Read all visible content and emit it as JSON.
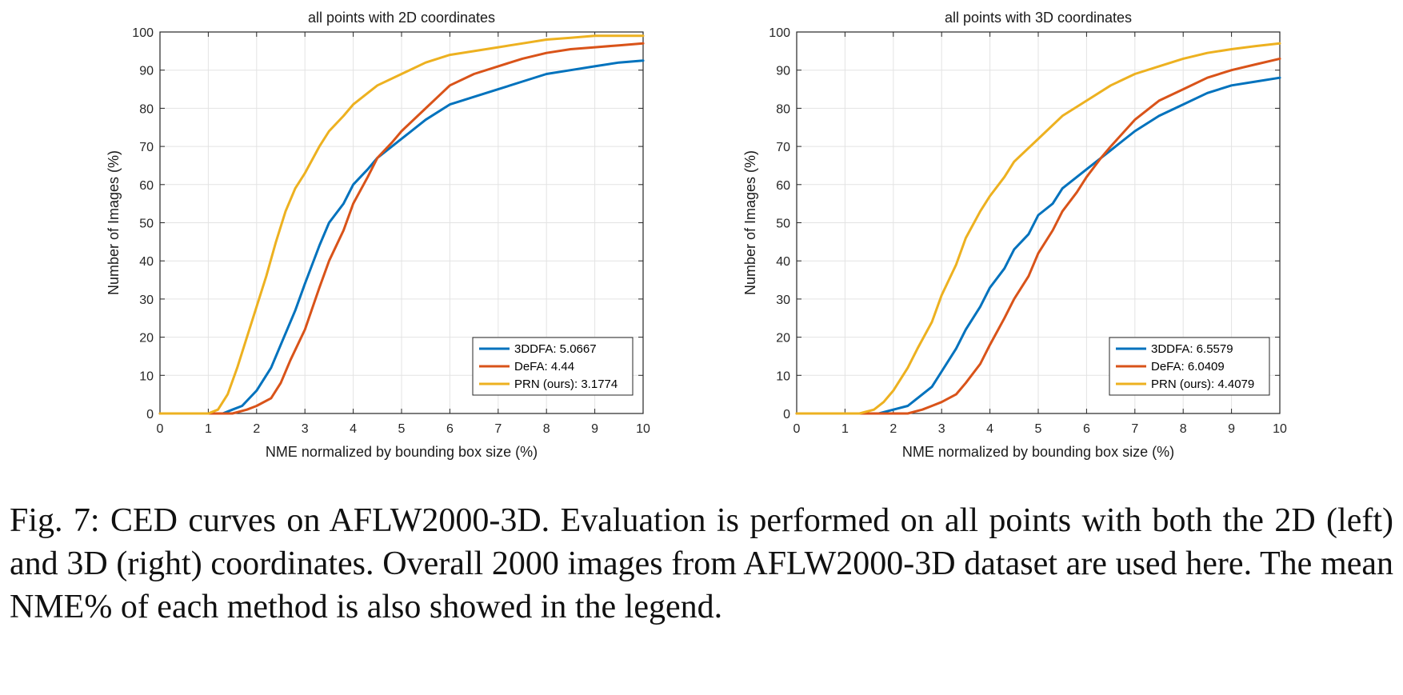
{
  "caption": "Fig. 7: CED curves on AFLW2000-3D. Evaluation is performed on all points with both the 2D (left) and 3D (right) coordinates. Overall 2000 images from AFLW2000-3D dataset are used here. The mean NME% of each method is also showed in the legend.",
  "chart_data": [
    {
      "type": "line",
      "title": "all points with 2D coordinates",
      "xlabel": "NME normalized by bounding box size (%)",
      "ylabel": "Number of Images (%)",
      "xlim": [
        0,
        10
      ],
      "ylim": [
        0,
        100
      ],
      "xticks": [
        0,
        1,
        2,
        3,
        4,
        5,
        6,
        7,
        8,
        9,
        10
      ],
      "yticks": [
        0,
        10,
        20,
        30,
        40,
        50,
        60,
        70,
        80,
        90,
        100
      ],
      "grid": true,
      "legend_position": "bottom-right",
      "series": [
        {
          "name": "3DDFA: 5.0667",
          "color": "#0072BD",
          "x": [
            0,
            1.3,
            1.5,
            1.7,
            2,
            2.3,
            2.5,
            2.8,
            3,
            3.3,
            3.5,
            3.8,
            4,
            4.3,
            4.5,
            5,
            5.5,
            6,
            6.5,
            7,
            7.5,
            8,
            8.5,
            9,
            9.5,
            10
          ],
          "y": [
            0,
            0,
            1,
            2,
            6,
            12,
            18,
            27,
            34,
            44,
            50,
            55,
            60,
            64,
            67,
            72,
            77,
            81,
            83,
            85,
            87,
            89,
            90,
            91,
            92,
            92.5
          ]
        },
        {
          "name": "DeFA: 4.44",
          "color": "#D95319",
          "x": [
            0,
            1.5,
            1.8,
            2,
            2.3,
            2.5,
            2.7,
            3,
            3.3,
            3.5,
            3.8,
            4,
            4.3,
            4.5,
            4.8,
            5,
            5.5,
            6,
            6.5,
            7,
            7.5,
            8,
            8.5,
            9,
            9.5,
            10
          ],
          "y": [
            0,
            0,
            1,
            2,
            4,
            8,
            14,
            22,
            33,
            40,
            48,
            55,
            62,
            67,
            71,
            74,
            80,
            86,
            89,
            91,
            93,
            94.5,
            95.5,
            96,
            96.5,
            97
          ]
        },
        {
          "name": "PRN (ours): 3.1774",
          "color": "#EDB120",
          "x": [
            0,
            1,
            1.2,
            1.4,
            1.6,
            1.8,
            2,
            2.2,
            2.4,
            2.6,
            2.8,
            3,
            3.3,
            3.5,
            3.8,
            4,
            4.3,
            4.5,
            5,
            5.5,
            6,
            6.5,
            7,
            7.5,
            8,
            8.5,
            9,
            9.5,
            10
          ],
          "y": [
            0,
            0,
            1,
            5,
            12,
            20,
            28,
            36,
            45,
            53,
            59,
            63,
            70,
            74,
            78,
            81,
            84,
            86,
            89,
            92,
            94,
            95,
            96,
            97,
            98,
            98.5,
            99,
            99,
            99
          ]
        }
      ]
    },
    {
      "type": "line",
      "title": "all points with 3D coordinates",
      "xlabel": "NME normalized by bounding box size (%)",
      "ylabel": "Number of Images (%)",
      "xlim": [
        0,
        10
      ],
      "ylim": [
        0,
        100
      ],
      "xticks": [
        0,
        1,
        2,
        3,
        4,
        5,
        6,
        7,
        8,
        9,
        10
      ],
      "yticks": [
        0,
        10,
        20,
        30,
        40,
        50,
        60,
        70,
        80,
        90,
        100
      ],
      "grid": true,
      "legend_position": "bottom-right",
      "series": [
        {
          "name": "3DDFA: 6.5579",
          "color": "#0072BD",
          "x": [
            0,
            1.7,
            2,
            2.3,
            2.5,
            2.8,
            3,
            3.3,
            3.5,
            3.8,
            4,
            4.3,
            4.5,
            4.8,
            5,
            5.3,
            5.5,
            6,
            6.5,
            7,
            7.5,
            8,
            8.5,
            9,
            9.5,
            10
          ],
          "y": [
            0,
            0,
            1,
            2,
            4,
            7,
            11,
            17,
            22,
            28,
            33,
            38,
            43,
            47,
            52,
            55,
            59,
            64,
            69,
            74,
            78,
            81,
            84,
            86,
            87,
            88
          ]
        },
        {
          "name": "DeFA: 6.0409",
          "color": "#D95319",
          "x": [
            0,
            2.3,
            2.6,
            2.8,
            3,
            3.3,
            3.5,
            3.8,
            4,
            4.3,
            4.5,
            4.8,
            5,
            5.3,
            5.5,
            5.8,
            6,
            6.3,
            6.5,
            7,
            7.5,
            8,
            8.5,
            9,
            9.5,
            10
          ],
          "y": [
            0,
            0,
            1,
            2,
            3,
            5,
            8,
            13,
            18,
            25,
            30,
            36,
            42,
            48,
            53,
            58,
            62,
            67,
            70,
            77,
            82,
            85,
            88,
            90,
            91.5,
            93
          ]
        },
        {
          "name": "PRN (ours): 4.4079",
          "color": "#EDB120",
          "x": [
            0,
            1.3,
            1.6,
            1.8,
            2,
            2.3,
            2.5,
            2.8,
            3,
            3.3,
            3.5,
            3.8,
            4,
            4.3,
            4.5,
            5,
            5.5,
            6,
            6.5,
            7,
            7.5,
            8,
            8.5,
            9,
            9.5,
            10
          ],
          "y": [
            0,
            0,
            1,
            3,
            6,
            12,
            17,
            24,
            31,
            39,
            46,
            53,
            57,
            62,
            66,
            72,
            78,
            82,
            86,
            89,
            91,
            93,
            94.5,
            95.5,
            96.3,
            97
          ]
        }
      ]
    }
  ]
}
